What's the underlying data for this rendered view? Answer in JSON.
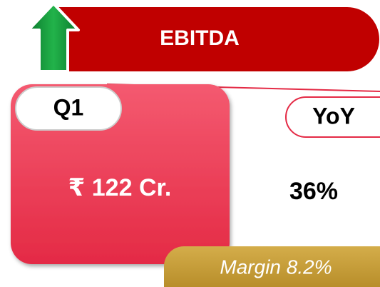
{
  "header": {
    "title": "EBITDA"
  },
  "card": {
    "period": "Q1",
    "value": "₹ 122 Cr."
  },
  "yoy": {
    "label": "YoY",
    "value": "36%"
  },
  "margin": "Margin 8.2%"
}
